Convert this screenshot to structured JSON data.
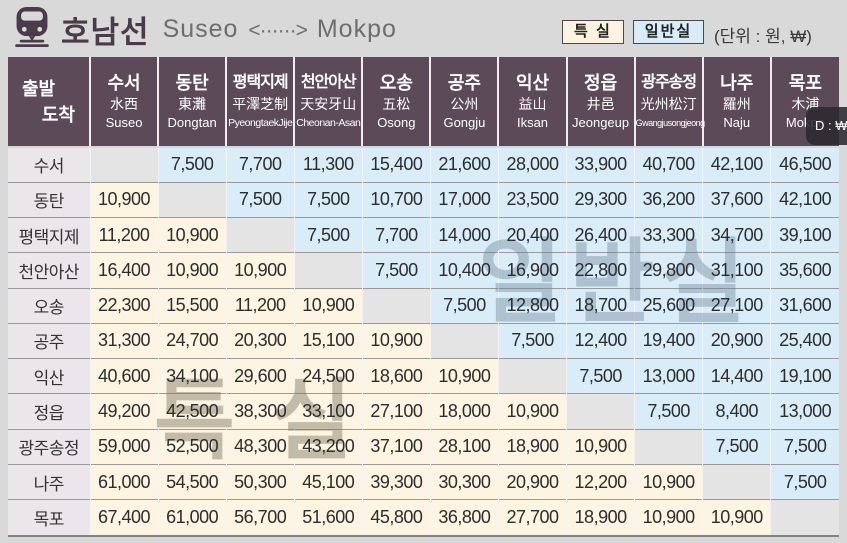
{
  "title": {
    "line_name": "호남선",
    "route_from": "Suseo",
    "route_arrow": "<······>",
    "route_to": "Mokpo"
  },
  "legend": {
    "first_class": "특 실",
    "standard_class": "일반실",
    "unit": "(단위 : 원, ₩)"
  },
  "colors": {
    "header_bg": "#5c4a59",
    "first_class_bg": "#fdf4e2",
    "standard_class_bg": "#d9edf8",
    "diagonal_bg": "#e4e4e4",
    "row_label_bg": "#eae6ea",
    "title_accent": "#4b3a49"
  },
  "watermarks": {
    "standard": "일반실",
    "first": "특 실"
  },
  "tooltip": {
    "text": "D : ₩컬"
  },
  "table": {
    "corner": {
      "top": "출발",
      "bottom": "도착"
    },
    "stations": [
      {
        "ko": "수서",
        "hanja": "水西",
        "en": "Suseo"
      },
      {
        "ko": "동탄",
        "hanja": "東灘",
        "en": "Dongtan"
      },
      {
        "ko": "평택지제",
        "hanja": "平澤芝制",
        "en": "PyeongtaekJije"
      },
      {
        "ko": "천안아산",
        "hanja": "天安牙山",
        "en": "Cheonan-Asan"
      },
      {
        "ko": "오송",
        "hanja": "五松",
        "en": "Osong"
      },
      {
        "ko": "공주",
        "hanja": "公州",
        "en": "Gongju"
      },
      {
        "ko": "익산",
        "hanja": "益山",
        "en": "Iksan"
      },
      {
        "ko": "정읍",
        "hanja": "井邑",
        "en": "Jeongeup"
      },
      {
        "ko": "광주송정",
        "hanja": "光州松汀",
        "en": "Gwangjusongjeong"
      },
      {
        "ko": "나주",
        "hanja": "羅州",
        "en": "Naju"
      },
      {
        "ko": "목포",
        "hanja": "木浦",
        "en": "Mokpo"
      }
    ],
    "fares": [
      [
        null,
        "7,500",
        "7,700",
        "11,300",
        "15,400",
        "21,600",
        "28,000",
        "33,900",
        "40,700",
        "42,100",
        "46,500"
      ],
      [
        "10,900",
        null,
        "7,500",
        "7,500",
        "10,700",
        "17,000",
        "23,500",
        "29,300",
        "36,200",
        "37,600",
        "42,100"
      ],
      [
        "11,200",
        "10,900",
        null,
        "7,500",
        "7,700",
        "14,000",
        "20,400",
        "26,400",
        "33,300",
        "34,700",
        "39,100"
      ],
      [
        "16,400",
        "10,900",
        "10,900",
        null,
        "7,500",
        "10,400",
        "16,900",
        "22,800",
        "29,800",
        "31,100",
        "35,600"
      ],
      [
        "22,300",
        "15,500",
        "11,200",
        "10,900",
        null,
        "7,500",
        "12,800",
        "18,700",
        "25,600",
        "27,100",
        "31,600"
      ],
      [
        "31,300",
        "24,700",
        "20,300",
        "15,100",
        "10,900",
        null,
        "7,500",
        "12,400",
        "19,400",
        "20,900",
        "25,400"
      ],
      [
        "40,600",
        "34,100",
        "29,600",
        "24,500",
        "18,600",
        "10,900",
        null,
        "7,500",
        "13,000",
        "14,400",
        "19,100"
      ],
      [
        "49,200",
        "42,500",
        "38,300",
        "33,100",
        "27,100",
        "18,000",
        "10,900",
        null,
        "7,500",
        "8,400",
        "13,000"
      ],
      [
        "59,000",
        "52,500",
        "48,300",
        "43,200",
        "37,100",
        "28,100",
        "18,900",
        "10,900",
        null,
        "7,500",
        "7,500"
      ],
      [
        "61,000",
        "54,500",
        "50,300",
        "45,100",
        "39,300",
        "30,300",
        "20,900",
        "12,200",
        "10,900",
        null,
        "7,500"
      ],
      [
        "67,400",
        "61,000",
        "56,700",
        "51,600",
        "45,800",
        "36,800",
        "27,700",
        "18,900",
        "10,900",
        "10,900",
        null
      ]
    ]
  }
}
